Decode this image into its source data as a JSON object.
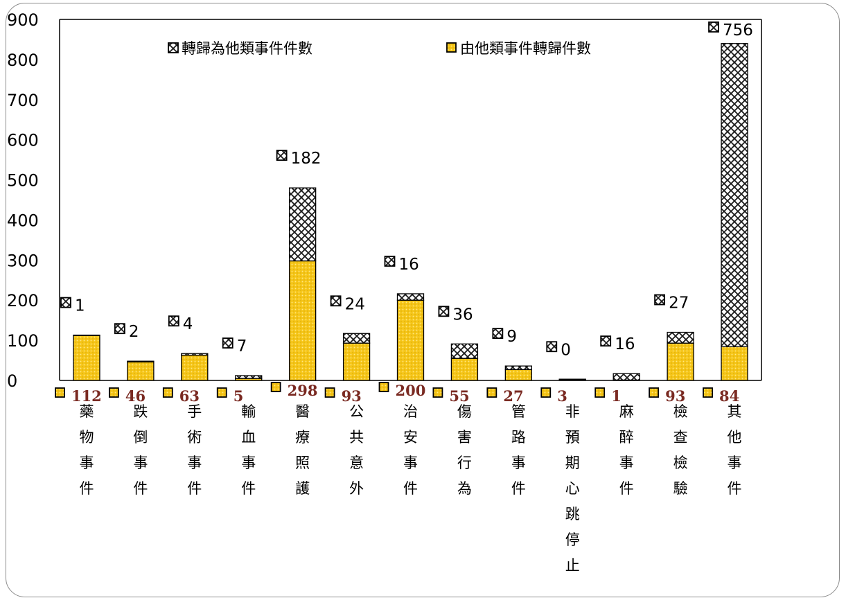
{
  "chart_data": {
    "type": "bar",
    "stacked": true,
    "categories": [
      "藥物事件",
      "跌倒事件",
      "手術事件",
      "輸血事件",
      "醫療照護",
      "公共意外",
      "治安事件",
      "傷害行為",
      "管路事件",
      "非預期心跳停止",
      "麻醉事件",
      "檢查檢驗",
      "其他事件"
    ],
    "series": [
      {
        "name": "由他類事件轉歸件數",
        "values": [
          112,
          46,
          63,
          5,
          298,
          93,
          200,
          55,
          27,
          3,
          1,
          93,
          84
        ],
        "color": "#f5c518",
        "pattern": "dots"
      },
      {
        "name": "轉歸為他類事件件數",
        "values": [
          1,
          2,
          4,
          7,
          182,
          24,
          16,
          36,
          9,
          0,
          16,
          27,
          756
        ],
        "color": "#ffffff",
        "pattern": "crosshatch"
      }
    ],
    "ylim": [
      0,
      900
    ],
    "yticks": [
      "0",
      "100",
      "200",
      "300",
      "400",
      "500",
      "600",
      "700",
      "800",
      "900"
    ],
    "legend_position": "top",
    "grid": false
  }
}
